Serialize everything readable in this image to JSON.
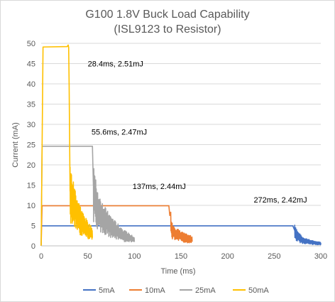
{
  "chart_data": {
    "type": "line",
    "title": "G100 1.8V Buck Load Capability",
    "subtitle": "(ISL9123 to Resistor)",
    "xlabel": "Time (ms)",
    "ylabel": "Current (mA)",
    "xlim": [
      0,
      300
    ],
    "ylim": [
      0,
      50
    ],
    "xticks": [
      0,
      50,
      100,
      150,
      200,
      250,
      300
    ],
    "yticks": [
      0,
      5,
      10,
      15,
      20,
      25,
      30,
      35,
      40,
      45,
      50
    ],
    "grid": "horizontal",
    "legend_position": "bottom",
    "series": [
      {
        "name": "5mA",
        "color": "#4472C4",
        "x": [
          0,
          270,
          272,
          275,
          280,
          290,
          300
        ],
        "y": [
          4.95,
          4.95,
          3.8,
          2.5,
          1.5,
          0.9,
          0.6
        ],
        "ripple_from_x": 272
      },
      {
        "name": "10mA",
        "color": "#ED7D31",
        "x": [
          0,
          1,
          137,
          138,
          140,
          145,
          150,
          155,
          162
        ],
        "y": [
          0,
          9.9,
          9.9,
          7.5,
          4.0,
          3.0,
          2.4,
          2.0,
          1.6
        ],
        "ripple_from_x": 139
      },
      {
        "name": "25mA",
        "color": "#A5A5A5",
        "x": [
          0,
          1,
          55,
          56,
          58,
          62,
          70,
          80,
          90,
          100
        ],
        "y": [
          0,
          24.6,
          24.6,
          15.0,
          11.5,
          8.5,
          6.0,
          4.0,
          2.5,
          1.5
        ],
        "ripple_from_x": 56
      },
      {
        "name": "50mA",
        "color": "#FFC000",
        "x": [
          0,
          2,
          28,
          29,
          29.5,
          30,
          31,
          35,
          40,
          45,
          50,
          55
        ],
        "y": [
          0,
          49.1,
          49.2,
          49.6,
          49.0,
          40.0,
          13.5,
          10.5,
          7.5,
          5.5,
          4.0,
          3.0
        ],
        "ripple_from_x": 31
      }
    ],
    "annotations": [
      {
        "text": "28.4ms, 2.51mJ",
        "x": 50,
        "y": 44.3
      },
      {
        "text": "55.6ms, 2.47mJ",
        "x": 54,
        "y": 27.5
      },
      {
        "text": "137ms, 2.44mJ",
        "x": 98,
        "y": 14.0
      },
      {
        "text": "272ms, 2.42mJ",
        "x": 228,
        "y": 10.7
      }
    ]
  }
}
